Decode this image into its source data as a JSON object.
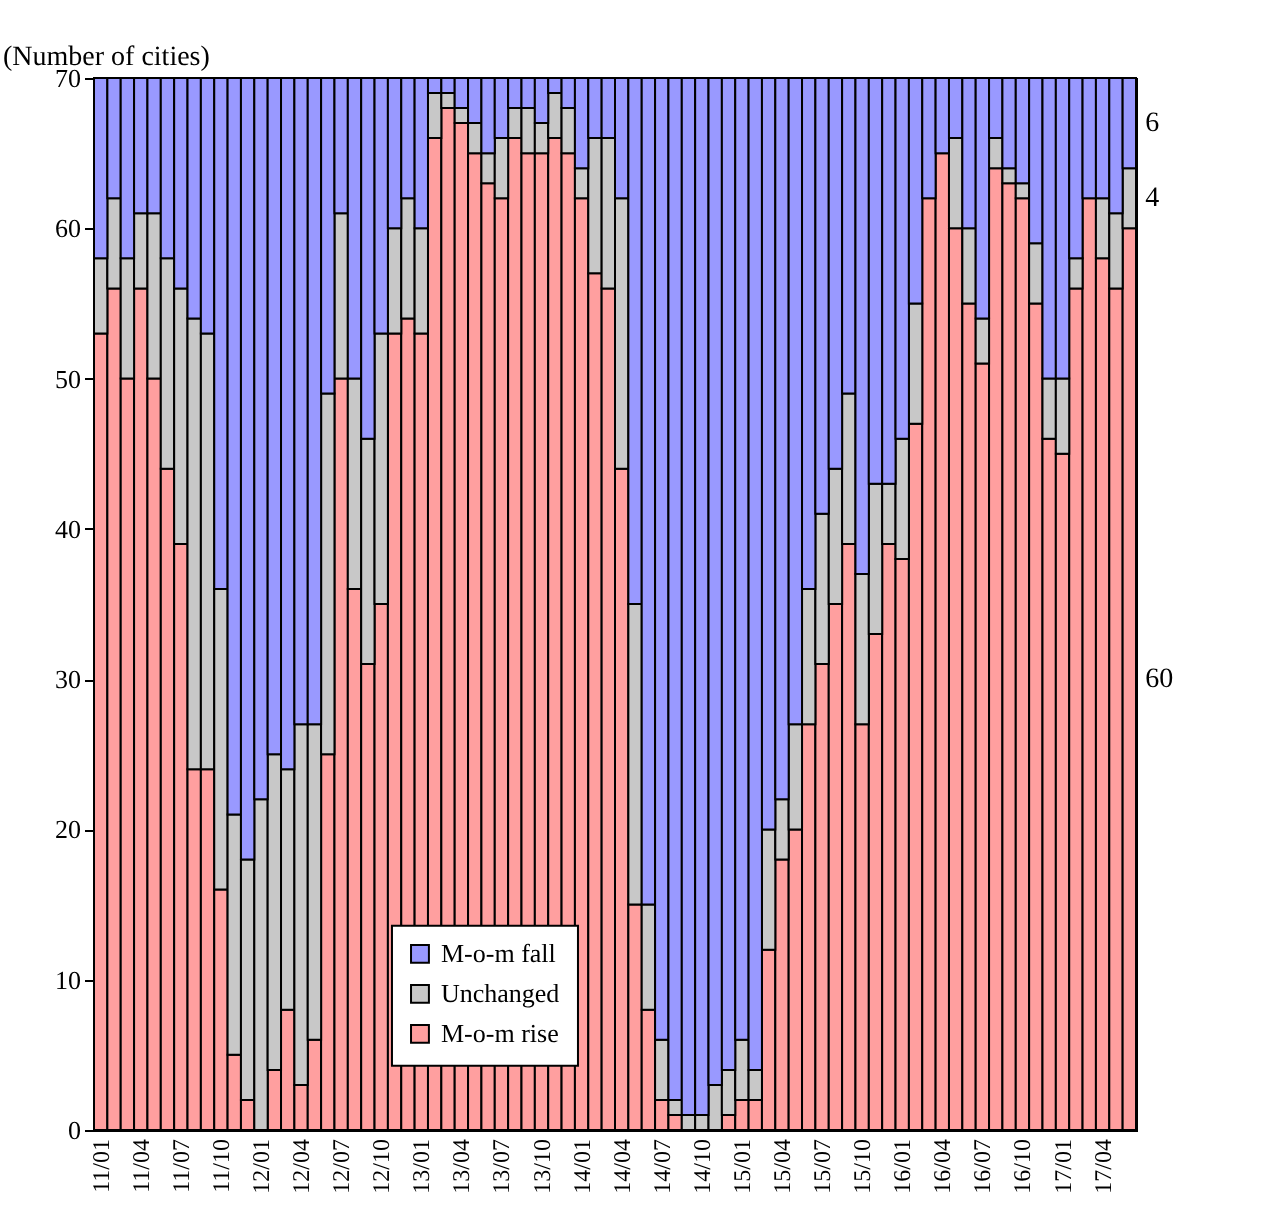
{
  "chart_data": {
    "type": "bar",
    "stacked": true,
    "ylabel": "(Number of cities)",
    "categories": [
      "11/01",
      null,
      null,
      "11/04",
      null,
      null,
      "11/07",
      null,
      null,
      "11/10",
      null,
      null,
      "12/01",
      null,
      null,
      "12/04",
      null,
      null,
      "12/07",
      null,
      null,
      "12/10",
      null,
      null,
      "13/01",
      null,
      null,
      "13/04",
      null,
      null,
      "13/07",
      null,
      null,
      "13/10",
      null,
      null,
      "14/01",
      null,
      null,
      "14/04",
      null,
      null,
      "14/07",
      null,
      null,
      "14/10",
      null,
      null,
      "15/01",
      null,
      null,
      "15/04",
      null,
      null,
      "15/07",
      null,
      null,
      "15/10",
      null,
      null,
      "16/01",
      null,
      null,
      "16/04",
      null,
      null,
      "16/07",
      null,
      null,
      "16/10",
      null,
      null,
      "17/01",
      null,
      null,
      "17/04",
      null,
      null
    ],
    "series": [
      {
        "name": "M-o-m rise",
        "color": "#ff9f9f",
        "values": [
          53,
          56,
          50,
          56,
          50,
          44,
          39,
          24,
          24,
          16,
          5,
          2,
          0,
          4,
          8,
          3,
          6,
          25,
          50,
          36,
          31,
          35,
          53,
          54,
          53,
          66,
          68,
          67,
          65,
          63,
          62,
          66,
          65,
          65,
          66,
          65,
          62,
          57,
          56,
          44,
          15,
          8,
          2,
          1,
          0,
          0,
          0,
          1,
          2,
          2,
          12,
          18,
          20,
          27,
          31,
          35,
          39,
          27,
          33,
          39,
          38,
          47,
          62,
          65,
          60,
          55,
          51,
          64,
          63,
          62,
          55,
          46,
          45,
          56,
          62,
          58,
          56,
          60
        ],
        "value_labels": [
          null,
          null,
          null,
          null,
          null,
          null,
          null,
          null,
          null,
          null,
          null,
          null,
          null,
          null,
          null,
          null,
          null,
          null,
          null,
          null,
          null,
          null,
          null,
          null,
          null,
          null,
          null,
          null,
          null,
          null,
          null,
          null,
          null,
          null,
          null,
          null,
          null,
          null,
          null,
          null,
          null,
          null,
          null,
          null,
          null,
          null,
          null,
          null,
          null,
          null,
          null,
          null,
          null,
          null,
          null,
          null,
          null,
          null,
          null,
          null,
          null,
          null,
          null,
          null,
          null,
          null,
          null,
          null,
          null,
          null,
          null,
          null,
          null,
          null,
          null,
          null,
          null,
          "60"
        ]
      },
      {
        "name": "Unchanged",
        "color": "#c8c8c8",
        "values": [
          5,
          6,
          8,
          5,
          11,
          14,
          17,
          30,
          29,
          20,
          16,
          16,
          22,
          21,
          16,
          24,
          21,
          24,
          11,
          14,
          15,
          18,
          7,
          8,
          7,
          3,
          1,
          1,
          2,
          2,
          4,
          2,
          3,
          2,
          3,
          3,
          2,
          9,
          10,
          18,
          20,
          7,
          4,
          1,
          1,
          1,
          3,
          3,
          4,
          2,
          8,
          4,
          7,
          9,
          10,
          9,
          10,
          10,
          10,
          4,
          8,
          8,
          0,
          0,
          6,
          5,
          3,
          2,
          1,
          1,
          4,
          4,
          5,
          2,
          0,
          4,
          5,
          4
        ],
        "value_labels": [
          null,
          null,
          null,
          null,
          null,
          null,
          null,
          null,
          null,
          null,
          null,
          null,
          null,
          null,
          null,
          null,
          null,
          null,
          null,
          null,
          null,
          null,
          null,
          null,
          null,
          null,
          null,
          null,
          null,
          null,
          null,
          null,
          null,
          null,
          null,
          null,
          null,
          null,
          null,
          null,
          null,
          null,
          null,
          null,
          null,
          null,
          null,
          null,
          null,
          null,
          null,
          null,
          null,
          null,
          null,
          null,
          null,
          null,
          null,
          null,
          null,
          null,
          null,
          null,
          null,
          null,
          null,
          null,
          null,
          null,
          null,
          null,
          null,
          null,
          null,
          null,
          null,
          "4"
        ]
      },
      {
        "name": "M-o-m fall",
        "color": "#9999ff",
        "values": [
          12,
          8,
          12,
          9,
          9,
          12,
          14,
          16,
          17,
          34,
          49,
          52,
          48,
          45,
          46,
          43,
          43,
          21,
          9,
          20,
          24,
          17,
          10,
          8,
          10,
          1,
          1,
          2,
          3,
          5,
          4,
          2,
          2,
          3,
          1,
          2,
          6,
          4,
          4,
          8,
          35,
          55,
          64,
          68,
          69,
          69,
          67,
          66,
          64,
          66,
          50,
          48,
          43,
          34,
          29,
          26,
          21,
          33,
          27,
          27,
          24,
          15,
          8,
          5,
          4,
          10,
          16,
          4,
          6,
          7,
          11,
          20,
          20,
          12,
          8,
          8,
          9,
          6
        ],
        "value_labels": [
          null,
          null,
          null,
          null,
          null,
          null,
          null,
          null,
          null,
          null,
          null,
          null,
          null,
          null,
          null,
          null,
          null,
          null,
          null,
          null,
          null,
          null,
          null,
          null,
          null,
          null,
          null,
          null,
          null,
          null,
          null,
          null,
          null,
          null,
          null,
          null,
          null,
          null,
          null,
          null,
          null,
          null,
          null,
          null,
          null,
          null,
          null,
          null,
          null,
          null,
          null,
          null,
          null,
          null,
          null,
          null,
          null,
          null,
          null,
          null,
          null,
          null,
          null,
          null,
          null,
          null,
          null,
          null,
          null,
          null,
          null,
          null,
          null,
          null,
          null,
          null,
          null,
          "6"
        ]
      }
    ],
    "ylim": [
      0,
      70
    ],
    "yticks": [
      0,
      10,
      20,
      30,
      40,
      50,
      60,
      70
    ],
    "legend": "bottom left"
  }
}
